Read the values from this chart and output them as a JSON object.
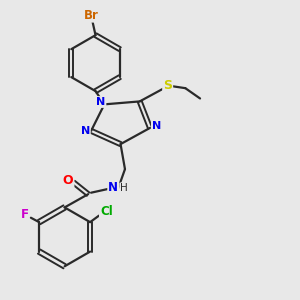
{
  "background_color": "#e8e8e8",
  "bond_color": "#2a2a2a",
  "atom_colors": {
    "Br": "#cc6600",
    "N": "#0000ee",
    "S": "#cccc00",
    "O": "#ff0000",
    "F": "#cc00cc",
    "Cl": "#00aa00",
    "H": "#2a2a2a",
    "C": "#2a2a2a"
  },
  "figsize": [
    3.0,
    3.0
  ],
  "dpi": 100
}
